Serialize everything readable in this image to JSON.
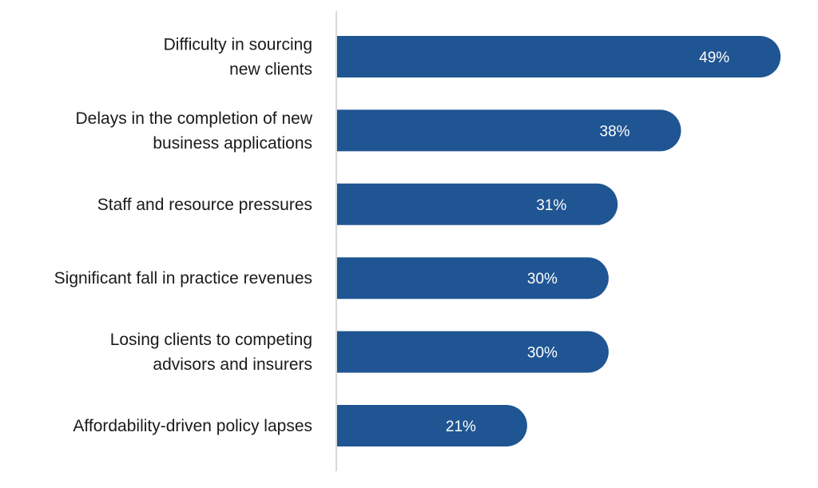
{
  "chart_data": {
    "type": "bar",
    "orientation": "horizontal",
    "categories": [
      [
        "Difficulty in sourcing",
        "new clients"
      ],
      [
        "Delays in the completion of new",
        "business applications"
      ],
      [
        "Staff and resource pressures"
      ],
      [
        "Significant fall in practice revenues"
      ],
      [
        "Losing clients to competing",
        "advisors and insurers"
      ],
      [
        "Affordability-driven policy lapses"
      ]
    ],
    "values": [
      49,
      38,
      31,
      30,
      30,
      21
    ],
    "data_labels": [
      "49%",
      "38%",
      "31%",
      "30%",
      "30%",
      "21%"
    ],
    "unit": "%",
    "xlim": [
      0,
      50
    ],
    "grid": false,
    "legend": "none",
    "colors": {
      "bar": "#1f5592",
      "axis": "#d9d9d9",
      "label": "#1a1a1a",
      "value_label": "#ffffff"
    }
  }
}
